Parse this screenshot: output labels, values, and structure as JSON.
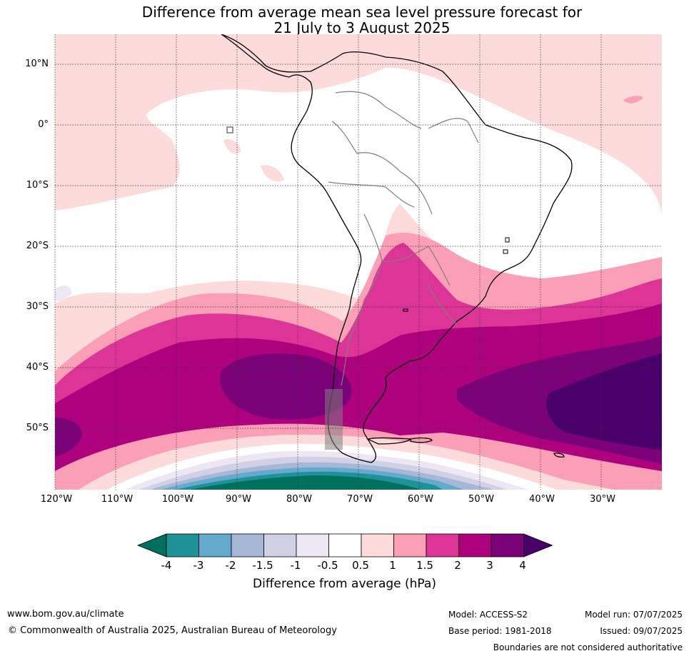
{
  "title_line1": "Difference from average mean sea level pressure forecast for",
  "title_line2": "21 July to 3 August 2025",
  "lat_labels": [
    "10°N",
    "0°",
    "10°S",
    "20°S",
    "30°S",
    "40°S",
    "50°S"
  ],
  "lon_labels": [
    "120°W",
    "110°W",
    "100°W",
    "90°W",
    "80°W",
    "70°W",
    "60°W",
    "50°W",
    "40°W",
    "30°W"
  ],
  "colorbar": {
    "title": "Difference from average (hPa)",
    "tick_labels": [
      "-4",
      "-3",
      "-2",
      "-1.5",
      "-1",
      "-0.5",
      "0.5",
      "1",
      "1.5",
      "2",
      "3",
      "4"
    ],
    "colors": {
      "below_-4": "#00705e",
      "-4_-3": "#1f9199",
      "-3_-2": "#66a9cf",
      "-2_-1.5": "#a6b8d6",
      "-1.5_-1": "#d0d1e6",
      "-1_-0.5": "#ece7f2",
      "-0.5_0.5": "#ffffff",
      "0.5_1": "#fddbda",
      "1_1.5": "#fa9fb5",
      "1.5_2": "#dd3497",
      "2_3": "#ae017e",
      "3_4": "#7a0177",
      "above_4": "#49006a"
    }
  },
  "footer": {
    "url": "www.bom.gov.au/climate",
    "copyright": "© Commonwealth of Australia 2025, Australian Bureau of Meteorology",
    "model": "Model: ACCESS-S2",
    "base_period": "Base period: 1981-2018",
    "model_run": "Model run: 07/07/2025",
    "issued": "Issued: 09/07/2025",
    "disclaimer": "Boundaries are not considered authoritative"
  }
}
